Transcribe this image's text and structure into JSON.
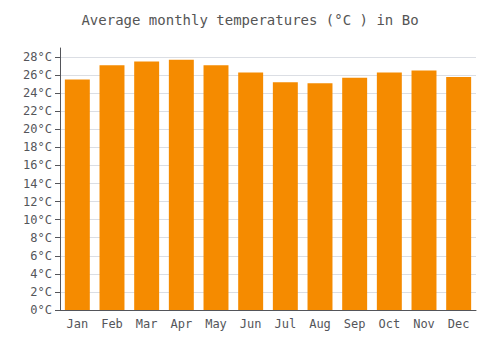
{
  "chart_data": {
    "type": "bar",
    "title": "Average monthly temperatures (°C ) in Bo",
    "categories": [
      "Jan",
      "Feb",
      "Mar",
      "Apr",
      "May",
      "Jun",
      "Jul",
      "Aug",
      "Sep",
      "Oct",
      "Nov",
      "Dec"
    ],
    "values": [
      25.5,
      27.1,
      27.5,
      27.7,
      27.1,
      26.3,
      25.2,
      25.1,
      25.7,
      26.3,
      26.5,
      25.8
    ],
    "color": "#F58B00",
    "ylim": [
      0,
      29
    ],
    "yticks": [
      {
        "value": 0,
        "label": "0°C"
      },
      {
        "value": 2,
        "label": "2°C"
      },
      {
        "value": 4,
        "label": "4°C"
      },
      {
        "value": 6,
        "label": "6°C"
      },
      {
        "value": 8,
        "label": "8°C"
      },
      {
        "value": 10,
        "label": "10°C"
      },
      {
        "value": 12,
        "label": "12°C"
      },
      {
        "value": 14,
        "label": "14°C"
      },
      {
        "value": 16,
        "label": "16°C"
      },
      {
        "value": 18,
        "label": "18°C"
      },
      {
        "value": 20,
        "label": "20°C"
      },
      {
        "value": 22,
        "label": "22°C"
      },
      {
        "value": 24,
        "label": "24°C"
      },
      {
        "value": 26,
        "label": "26°C"
      },
      {
        "value": 28,
        "label": "28°C"
      }
    ],
    "grid": true
  }
}
